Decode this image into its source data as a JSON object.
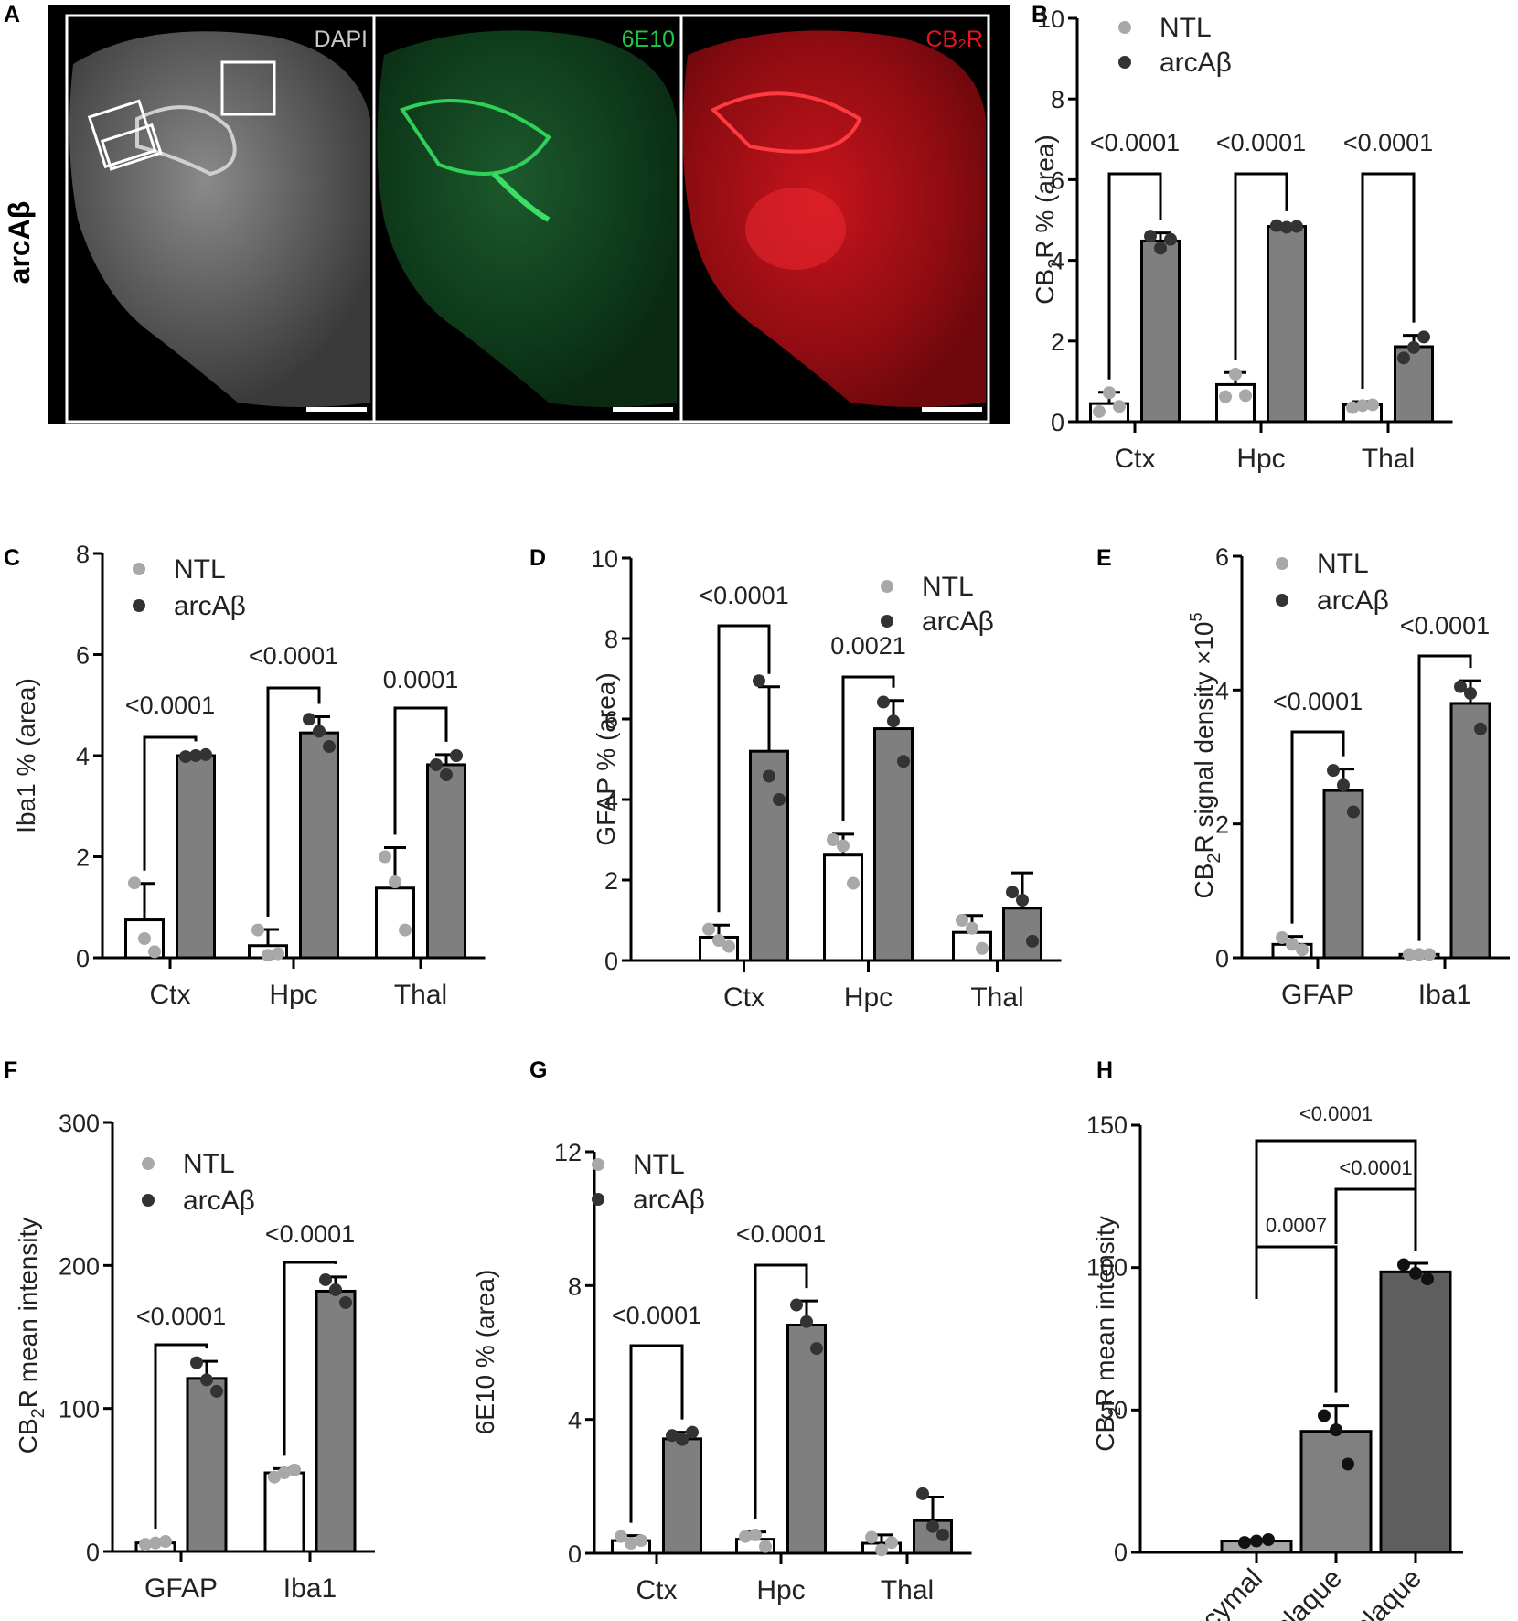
{
  "panel_a": {
    "label": "A",
    "row_label": "arcAβ",
    "channels": [
      {
        "name": "DAPI",
        "color": "#c8c8c8"
      },
      {
        "name": "6E10",
        "color": "#1ec84a"
      },
      {
        "name": "CB₂R",
        "color": "#e8141e"
      }
    ]
  },
  "legend": {
    "ntl": "NTL",
    "arc": "arcAβ"
  },
  "colors": {
    "ntl_bar": "#ffffff",
    "arc_bar": "#7f7f7f",
    "ntl_point": "#a8a8a8",
    "arc_point": "#333333",
    "h_bar1": "#a6a6a6",
    "h_bar2": "#808080",
    "h_bar3": "#5e5e5e"
  },
  "chart_data": [
    {
      "panel": "B",
      "type": "bar",
      "ylabel_pre": "CB",
      "ylabel_sub": "2",
      "ylabel_post": "R % (area)",
      "ylim": [
        0,
        10
      ],
      "yticks": [
        "0",
        "2",
        "4",
        "6",
        "8",
        "10"
      ],
      "categories": [
        "Ctx",
        "Hpc",
        "Thal"
      ],
      "series": [
        {
          "name": "NTL",
          "values": [
            0.45,
            0.92,
            0.42
          ],
          "errors": [
            0.28,
            0.3,
            0.08
          ],
          "points": [
            [
              0.25,
              0.72,
              0.38
            ],
            [
              0.62,
              1.18,
              0.65
            ],
            [
              0.35,
              0.4,
              0.42
            ]
          ]
        },
        {
          "name": "arcAβ",
          "values": [
            4.48,
            4.84,
            1.86
          ],
          "errors": [
            0.2,
            0.06,
            0.28
          ],
          "points": [
            [
              4.6,
              4.3,
              4.52
            ],
            [
              4.86,
              4.82,
              4.84
            ],
            [
              1.58,
              1.84,
              2.1
            ]
          ]
        }
      ],
      "pvalues": [
        "<0.0001",
        "<0.0001",
        "<0.0001"
      ]
    },
    {
      "panel": "C",
      "type": "bar",
      "ylabel": "Iba1 % (area)",
      "ylim": [
        0,
        8
      ],
      "yticks": [
        "0",
        "2",
        "4",
        "6",
        "8"
      ],
      "categories": [
        "Ctx",
        "Hpc",
        "Thal"
      ],
      "series": [
        {
          "name": "NTL",
          "values": [
            0.75,
            0.24,
            1.38
          ],
          "errors": [
            0.72,
            0.32,
            0.8
          ],
          "points": [
            [
              1.48,
              0.38,
              0.12
            ],
            [
              0.55,
              0.05,
              0.08
            ],
            [
              2.0,
              1.5,
              0.55
            ]
          ]
        },
        {
          "name": "arcAβ",
          "values": [
            4.0,
            4.45,
            3.82
          ],
          "errors": [
            0.03,
            0.32,
            0.2
          ],
          "points": [
            [
              3.98,
              4.0,
              4.02
            ],
            [
              4.72,
              4.48,
              4.18
            ],
            [
              3.82,
              3.62,
              4.0
            ]
          ]
        }
      ],
      "pvalues": [
        "<0.0001",
        "<0.0001",
        "0.0001"
      ]
    },
    {
      "panel": "D",
      "type": "bar",
      "ylabel": "GFAP % (area)",
      "ylim": [
        0,
        10
      ],
      "yticks": [
        "0",
        "2",
        "4",
        "6",
        "8",
        "10"
      ],
      "categories": [
        "Ctx",
        "Hpc",
        "Thal"
      ],
      "series": [
        {
          "name": "NTL",
          "values": [
            0.58,
            2.62,
            0.7
          ],
          "errors": [
            0.3,
            0.52,
            0.42
          ],
          "points": [
            [
              0.78,
              0.5,
              0.35
            ],
            [
              3.0,
              2.85,
              1.92
            ],
            [
              1.0,
              0.8,
              0.3
            ]
          ]
        },
        {
          "name": "arcAβ",
          "values": [
            5.2,
            5.76,
            1.3
          ],
          "errors": [
            1.6,
            0.7,
            0.88
          ],
          "points": [
            [
              6.95,
              4.58,
              4.0
            ],
            [
              6.42,
              5.95,
              4.95
            ],
            [
              1.7,
              1.5,
              0.48
            ]
          ]
        }
      ],
      "pvalues": [
        "<0.0001",
        "0.0021"
      ]
    },
    {
      "panel": "E",
      "type": "bar",
      "ylabel_pre": "CB",
      "ylabel_sub": "2",
      "ylabel_post": "R signal density ×10",
      "ylabel_sup": "5",
      "ylim": [
        0,
        6
      ],
      "yticks": [
        "0",
        "2",
        "4",
        "6"
      ],
      "categories": [
        "GFAP",
        "Iba1"
      ],
      "series": [
        {
          "name": "NTL",
          "values": [
            0.2,
            0.05
          ],
          "errors": [
            0.12,
            0.01
          ],
          "points": [
            [
              0.3,
              0.2,
              0.12
            ],
            [
              0.05,
              0.05,
              0.05
            ]
          ]
        },
        {
          "name": "arcAβ",
          "values": [
            2.5,
            3.8
          ],
          "errors": [
            0.32,
            0.34
          ],
          "points": [
            [
              2.8,
              2.58,
              2.18
            ],
            [
              4.05,
              3.95,
              3.42
            ]
          ]
        }
      ],
      "pvalues": [
        "<0.0001",
        "<0.0001"
      ]
    },
    {
      "panel": "F",
      "type": "bar",
      "ylabel_pre": "CB",
      "ylabel_sub": "2",
      "ylabel_post": "R mean intensity",
      "ylim": [
        0,
        300
      ],
      "yticks": [
        "0",
        "100",
        "200",
        "300"
      ],
      "categories": [
        "GFAP",
        "Iba1"
      ],
      "series": [
        {
          "name": "NTL",
          "values": [
            6,
            55
          ],
          "errors": [
            1,
            3
          ],
          "points": [
            [
              5,
              6,
              7
            ],
            [
              52,
              55,
              57
            ]
          ]
        },
        {
          "name": "arcAβ",
          "values": [
            121,
            182
          ],
          "errors": [
            12,
            10
          ],
          "points": [
            [
              132,
              120,
              112
            ],
            [
              190,
              183,
              174
            ]
          ]
        }
      ],
      "pvalues": [
        "<0.0001",
        "<0.0001"
      ]
    },
    {
      "panel": "G",
      "type": "bar",
      "ylabel": "6E10 % (area)",
      "ylim": [
        0,
        12
      ],
      "yticks": [
        "0",
        "4",
        "8",
        "12"
      ],
      "categories": [
        "Ctx",
        "Hpc",
        "Thal"
      ],
      "series": [
        {
          "name": "NTL",
          "values": [
            0.38,
            0.42,
            0.3
          ],
          "errors": [
            0.15,
            0.22,
            0.25
          ],
          "points": [
            [
              0.5,
              0.3,
              0.38
            ],
            [
              0.5,
              0.55,
              0.2
            ],
            [
              0.48,
              0.1,
              0.32
            ]
          ]
        },
        {
          "name": "arcAβ",
          "values": [
            3.42,
            6.82,
            0.98
          ],
          "errors": [
            0.2,
            0.72,
            0.7
          ],
          "points": [
            [
              3.52,
              3.4,
              3.62
            ],
            [
              7.42,
              6.92,
              6.12
            ],
            [
              1.78,
              0.8,
              0.55
            ]
          ]
        }
      ],
      "pvalues": [
        "<0.0001",
        "<0.0001"
      ]
    },
    {
      "panel": "H",
      "type": "bar",
      "ylabel_pre": "CB",
      "ylabel_sub": "2",
      "ylabel_post": "R mean intensity",
      "ylim": [
        0,
        150
      ],
      "yticks": [
        "0",
        "50",
        "100",
        "150"
      ],
      "categories": [
        "Parencymal",
        "Peri-plaque",
        "Inside plaque"
      ],
      "values": [
        4,
        42.5,
        98.5
      ],
      "errors": [
        0.5,
        9,
        3
      ],
      "points": [
        [
          3.5,
          4,
          4.5
        ],
        [
          48,
          43,
          31
        ],
        [
          101,
          98,
          96
        ]
      ],
      "pvalues": [
        "0.0007",
        "<0.0001",
        "<0.0001"
      ]
    }
  ],
  "chart_labels": [
    "B",
    "C",
    "D",
    "E",
    "F",
    "G",
    "H"
  ]
}
